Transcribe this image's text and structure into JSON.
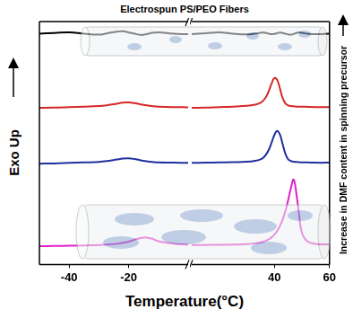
{
  "chart_data": [
    {
      "type": "line",
      "title": "Electrospun PS/PEO Fibers",
      "x_label": "Temperature(°C)",
      "y_label": "Exo Up",
      "annotation": "Increase in DMF content in spinning precursor",
      "x": [
        -50,
        -45,
        -40,
        -35,
        -30,
        -27,
        -24,
        -22,
        -20,
        -18,
        -16,
        -14,
        -12,
        -10,
        -5,
        0
      ],
      "xlim": [
        -50,
        0
      ],
      "xticks": [
        -40,
        -20
      ],
      "ylim": [
        0,
        100
      ],
      "tick_labels": "x",
      "grid": false,
      "series": [
        {
          "color": "#000000",
          "values": [
            95,
            95.3,
            95.6,
            95,
            94.6,
            95.2,
            95.8,
            96,
            95.5,
            95,
            94.5,
            94.8,
            95.4,
            95.6,
            95,
            94.8
          ]
        },
        {
          "color": "#d62728",
          "values": [
            64.5,
            64.6,
            64.8,
            65,
            65.2,
            65.6,
            66.2,
            66.6,
            66.7,
            66.4,
            65.9,
            65.5,
            65.2,
            65,
            64.8,
            64.7
          ]
        },
        {
          "color": "#1f2f9e",
          "values": [
            41.5,
            41.6,
            41.8,
            42,
            42.2,
            42.6,
            43.2,
            43.6,
            43.7,
            43.4,
            42.9,
            42.5,
            42.2,
            42,
            41.9,
            41.8
          ]
        },
        {
          "color": "#e020c8",
          "values": [
            7.5,
            7.6,
            7.7,
            7.8,
            8,
            8.2,
            8.5,
            8.9,
            9.4,
            10.2,
            10.9,
            11.1,
            10.6,
            9.6,
            8.6,
            8.2
          ]
        }
      ]
    },
    {
      "type": "line",
      "x": [
        10,
        15,
        20,
        25,
        30,
        33,
        35,
        36,
        37,
        38,
        39,
        40,
        41,
        42,
        43,
        44,
        45,
        46,
        47,
        48,
        49,
        50,
        52,
        55,
        60
      ],
      "xlim": [
        10,
        60
      ],
      "xticks": [
        40,
        60
      ],
      "ylim": [
        0,
        100
      ],
      "tick_labels": "x",
      "grid": false,
      "series": [
        {
          "color": "#000000",
          "values": [
            94.8,
            95.2,
            95.6,
            95,
            94.7,
            95,
            95.4,
            95.5,
            95.3,
            95,
            94.8,
            94.9,
            95.2,
            95.5,
            95.3,
            95,
            94.7,
            94.6,
            94.9,
            95.3,
            95.6,
            95.4,
            95,
            94.8,
            95
          ]
        },
        {
          "color": "#d62728",
          "values": [
            64.5,
            64.6,
            64.8,
            65,
            65.3,
            65.8,
            66.6,
            67.5,
            69,
            71.5,
            74.5,
            76.8,
            76,
            72.5,
            68.5,
            66.3,
            65.5,
            65.2,
            65.1,
            65,
            65,
            65,
            64.9,
            64.8,
            64.8
          ]
        },
        {
          "color": "#1f2f9e",
          "values": [
            41.8,
            41.9,
            42,
            42.1,
            42.3,
            42.7,
            43.3,
            44,
            45.3,
            47.3,
            50.2,
            53.3,
            55,
            53.5,
            49.5,
            45.5,
            43.3,
            42.6,
            42.3,
            42.2,
            42.1,
            42,
            42,
            41.9,
            41.9
          ]
        },
        {
          "color": "#e020c8",
          "values": [
            8,
            8,
            8.1,
            8.2,
            8.4,
            8.7,
            9.1,
            9.4,
            9.8,
            10.4,
            11.2,
            12.3,
            13.8,
            15.8,
            18.5,
            22,
            26.5,
            31.5,
            35,
            29,
            20,
            13,
            9.5,
            8.5,
            8.2
          ]
        }
      ]
    }
  ]
}
